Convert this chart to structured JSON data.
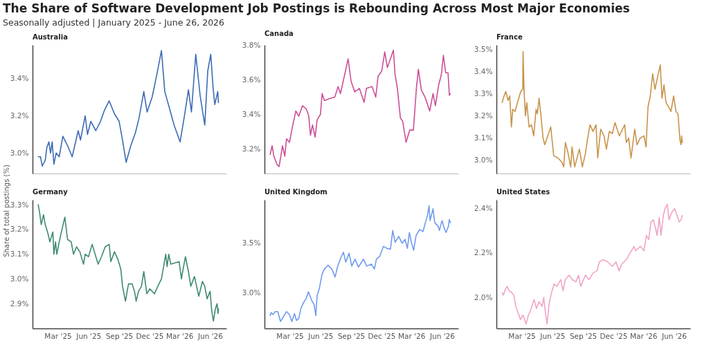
{
  "chart_data": [
    {
      "type": "line",
      "title": "The Share of Software Development Job Postings is Rebounding Across Most Major Economies",
      "subtitle": "Seasonally adjusted | January 2025 - June 26, 2026",
      "tick_labels": "y",
      "xlim": [
        "2024-12-15",
        "2026-07-20"
      ],
      "xticks": [
        {
          "value": "2025-03-01",
          "label": null
        },
        {
          "value": "2025-06-01",
          "label": null
        },
        {
          "value": "2025-09-01",
          "label": null
        },
        {
          "value": "2025-12-01",
          "label": null
        },
        {
          "value": "2026-03-01",
          "label": null
        },
        {
          "value": "2026-06-01",
          "label": null
        }
      ],
      "ylim": [
        2.89,
        3.58
      ],
      "yticks": [
        {
          "value": 3.0,
          "label": "3.0%"
        },
        {
          "value": 3.2,
          "label": "3.2%"
        },
        {
          "value": 3.4,
          "label": "3.4%"
        }
      ],
      "series": [
        {
          "name": "Australia",
          "color": "#3d6bb5",
          "x": [
            "2025-01-01",
            "2025-01-08",
            "2025-01-13",
            "2025-01-22",
            "2025-01-27",
            "2025-02-02",
            "2025-02-07",
            "2025-02-12",
            "2025-02-17",
            "2025-02-24",
            "2025-03-05",
            "2025-03-16",
            "2025-03-30",
            "2025-04-13",
            "2025-05-01",
            "2025-05-08",
            "2025-05-22",
            "2025-05-29",
            "2025-06-08",
            "2025-06-23",
            "2025-07-07",
            "2025-07-19",
            "2025-08-02",
            "2025-08-18",
            "2025-09-01",
            "2025-09-12",
            "2025-09-22",
            "2025-10-06",
            "2025-10-20",
            "2025-10-31",
            "2025-11-14",
            "2025-11-24",
            "2025-12-09",
            "2025-12-23",
            "2026-01-06",
            "2026-01-16",
            "2026-01-27",
            "2026-02-13",
            "2026-03-03",
            "2026-03-17",
            "2026-03-28",
            "2026-04-06",
            "2026-04-19",
            "2026-05-02",
            "2026-05-16",
            "2026-05-25",
            "2026-06-03",
            "2026-06-10",
            "2026-06-15",
            "2026-06-24",
            "2026-06-26"
          ],
          "values": [
            2.98,
            2.98,
            2.93,
            2.96,
            3.03,
            3.06,
            3.0,
            3.06,
            2.94,
            3.0,
            2.98,
            3.09,
            3.04,
            2.98,
            3.12,
            3.07,
            3.2,
            3.1,
            3.17,
            3.12,
            3.17,
            3.23,
            3.28,
            3.21,
            3.17,
            3.06,
            2.95,
            3.04,
            3.11,
            3.19,
            3.33,
            3.22,
            3.3,
            3.42,
            3.55,
            3.33,
            3.26,
            3.15,
            3.06,
            3.21,
            3.34,
            3.22,
            3.53,
            3.31,
            3.15,
            3.44,
            3.53,
            3.35,
            3.26,
            3.33,
            3.27
          ]
        }
      ]
    },
    {
      "type": "line",
      "tick_labels": "y",
      "xlim": [
        "2024-12-15",
        "2026-07-20"
      ],
      "xticks": [
        {
          "value": "2025-03-01",
          "label": null
        },
        {
          "value": "2025-06-01",
          "label": null
        },
        {
          "value": "2025-09-01",
          "label": null
        },
        {
          "value": "2025-12-01",
          "label": null
        },
        {
          "value": "2026-03-01",
          "label": null
        },
        {
          "value": "2026-06-01",
          "label": null
        }
      ],
      "ylim": [
        3.06,
        3.8
      ],
      "yticks": [
        {
          "value": 3.2,
          "label": "3.2%"
        },
        {
          "value": 3.4,
          "label": "3.4%"
        },
        {
          "value": 3.6,
          "label": "3.6%"
        },
        {
          "value": 3.8,
          "label": "3.8%"
        }
      ],
      "series": [
        {
          "name": "Canada",
          "color": "#cc4f96",
          "x": [
            "2025-01-01",
            "2025-01-07",
            "2025-01-12",
            "2025-01-22",
            "2025-01-28",
            "2025-02-07",
            "2025-02-14",
            "2025-02-19",
            "2025-02-28",
            "2025-03-09",
            "2025-03-19",
            "2025-03-28",
            "2025-04-08",
            "2025-04-20",
            "2025-04-27",
            "2025-05-02",
            "2025-05-08",
            "2025-05-16",
            "2025-05-22",
            "2025-06-01",
            "2025-06-06",
            "2025-06-13",
            "2025-06-26",
            "2025-07-14",
            "2025-07-24",
            "2025-07-31",
            "2025-08-14",
            "2025-08-23",
            "2025-09-01",
            "2025-09-12",
            "2025-09-26",
            "2025-10-10",
            "2025-10-17",
            "2025-11-03",
            "2025-11-14",
            "2025-11-21",
            "2025-12-02",
            "2025-12-11",
            "2025-12-19",
            "2026-01-06",
            "2026-01-11",
            "2026-01-18",
            "2026-01-27",
            "2026-02-03",
            "2026-02-13",
            "2026-02-24",
            "2026-03-07",
            "2026-03-16",
            "2026-03-22",
            "2026-03-31",
            "2026-04-11",
            "2026-04-25",
            "2026-05-05",
            "2026-05-12",
            "2026-05-22",
            "2026-05-30",
            "2026-06-05",
            "2026-06-12",
            "2026-06-19",
            "2026-06-23",
            "2026-06-26"
          ],
          "values": [
            3.17,
            3.22,
            3.16,
            3.11,
            3.1,
            3.22,
            3.16,
            3.26,
            3.24,
            3.33,
            3.42,
            3.39,
            3.45,
            3.43,
            3.39,
            3.28,
            3.34,
            3.27,
            3.37,
            3.4,
            3.52,
            3.48,
            3.49,
            3.5,
            3.56,
            3.52,
            3.64,
            3.72,
            3.59,
            3.53,
            3.55,
            3.47,
            3.55,
            3.56,
            3.5,
            3.62,
            3.65,
            3.76,
            3.67,
            3.77,
            3.63,
            3.55,
            3.38,
            3.36,
            3.24,
            3.31,
            3.31,
            3.55,
            3.66,
            3.54,
            3.5,
            3.42,
            3.52,
            3.45,
            3.57,
            3.63,
            3.74,
            3.64,
            3.64,
            3.51,
            3.52
          ]
        }
      ]
    },
    {
      "type": "line",
      "tick_labels": "y",
      "xlim": [
        "2024-12-15",
        "2026-07-20"
      ],
      "xticks": [
        {
          "value": "2025-03-01",
          "label": null
        },
        {
          "value": "2025-06-01",
          "label": null
        },
        {
          "value": "2025-09-01",
          "label": null
        },
        {
          "value": "2025-12-01",
          "label": null
        },
        {
          "value": "2026-03-01",
          "label": null
        },
        {
          "value": "2026-06-01",
          "label": null
        }
      ],
      "ylim": [
        2.94,
        3.52
      ],
      "yticks": [
        {
          "value": 3.0,
          "label": "3.0%"
        },
        {
          "value": 3.1,
          "label": "3.1%"
        },
        {
          "value": 3.2,
          "label": "3.2%"
        },
        {
          "value": 3.3,
          "label": "3.3%"
        },
        {
          "value": 3.4,
          "label": "3.4%"
        },
        {
          "value": 3.5,
          "label": "3.5%"
        }
      ],
      "series": [
        {
          "name": "France",
          "color": "#c8934a",
          "x": [
            "2025-01-01",
            "2025-01-07",
            "2025-01-12",
            "2025-01-19",
            "2025-01-24",
            "2025-01-29",
            "2025-02-02",
            "2025-02-09",
            "2025-02-18",
            "2025-02-26",
            "2025-03-04",
            "2025-03-05",
            "2025-03-08",
            "2025-03-12",
            "2025-03-16",
            "2025-03-23",
            "2025-03-30",
            "2025-04-06",
            "2025-04-13",
            "2025-04-17",
            "2025-04-22",
            "2025-04-27",
            "2025-05-04",
            "2025-05-09",
            "2025-05-18",
            "2025-05-27",
            "2025-06-05",
            "2025-06-18",
            "2025-06-30",
            "2025-07-05",
            "2025-07-10",
            "2025-07-17",
            "2025-07-26",
            "2025-07-30",
            "2025-08-07",
            "2025-08-21",
            "2025-08-30",
            "2025-09-08",
            "2025-09-15",
            "2025-09-22",
            "2025-10-01",
            "2025-10-10",
            "2025-10-15",
            "2025-10-24",
            "2025-11-03",
            "2025-11-10",
            "2025-11-19",
            "2025-11-28",
            "2025-12-06",
            "2025-12-19",
            "2026-01-04",
            "2026-01-09",
            "2026-01-16",
            "2026-01-23",
            "2026-02-03",
            "2026-02-10",
            "2026-02-20",
            "2026-03-03",
            "2026-03-09",
            "2026-03-15",
            "2026-03-22",
            "2026-03-29",
            "2026-04-05",
            "2026-04-12",
            "2026-04-21",
            "2026-04-26",
            "2026-05-02",
            "2026-05-08",
            "2026-05-16",
            "2026-05-23",
            "2026-05-31",
            "2026-06-07",
            "2026-06-13",
            "2026-06-19",
            "2026-06-22",
            "2026-06-24",
            "2026-06-26"
          ],
          "values": [
            3.26,
            3.29,
            3.31,
            3.27,
            3.29,
            3.15,
            3.23,
            3.22,
            3.27,
            3.31,
            3.32,
            3.49,
            3.31,
            3.2,
            3.26,
            3.15,
            3.16,
            3.11,
            3.23,
            3.21,
            3.28,
            3.21,
            3.1,
            3.07,
            3.11,
            3.15,
            3.02,
            3.01,
            2.99,
            2.97,
            3.08,
            3.04,
            2.97,
            3.06,
            2.97,
            3.05,
            2.97,
            3.03,
            3.1,
            3.16,
            3.13,
            3.16,
            3.01,
            3.14,
            3.11,
            3.05,
            3.13,
            3.12,
            3.17,
            3.11,
            3.16,
            3.08,
            3.1,
            3.01,
            3.14,
            3.07,
            3.1,
            3.11,
            3.06,
            3.24,
            3.29,
            3.39,
            3.32,
            3.37,
            3.43,
            3.28,
            3.34,
            3.26,
            3.24,
            3.22,
            3.29,
            3.22,
            3.21,
            3.09,
            3.07,
            3.11,
            3.08
          ]
        }
      ]
    },
    {
      "type": "line",
      "ylabel": "Share of total postings (%)",
      "xlim": [
        "2024-12-15",
        "2026-07-20"
      ],
      "xticks": [
        {
          "value": "2025-03-01",
          "label": "Mar '25"
        },
        {
          "value": "2025-06-01",
          "label": "Jun '25"
        },
        {
          "value": "2025-09-01",
          "label": "Sep '25"
        },
        {
          "value": "2025-12-01",
          "label": "Dec '25"
        },
        {
          "value": "2026-03-01",
          "label": "Mar '26"
        },
        {
          "value": "2026-06-01",
          "label": "Jun '26"
        }
      ],
      "ylim": [
        2.8,
        3.32
      ],
      "yticks": [
        {
          "value": 2.9,
          "label": "2.9%"
        },
        {
          "value": 3.0,
          "label": "3.0%"
        },
        {
          "value": 3.1,
          "label": "3.1%"
        },
        {
          "value": 3.2,
          "label": "3.2%"
        },
        {
          "value": 3.3,
          "label": "3.3%"
        }
      ],
      "series": [
        {
          "name": "Germany",
          "color": "#3e8a72",
          "x": [
            "2025-01-01",
            "2025-01-05",
            "2025-01-10",
            "2025-01-17",
            "2025-01-22",
            "2025-01-31",
            "2025-02-05",
            "2025-02-14",
            "2025-02-17",
            "2025-02-22",
            "2025-02-26",
            "2025-03-05",
            "2025-03-15",
            "2025-03-22",
            "2025-03-30",
            "2025-04-10",
            "2025-04-17",
            "2025-04-26",
            "2025-05-06",
            "2025-05-17",
            "2025-05-22",
            "2025-06-01",
            "2025-06-12",
            "2025-06-23",
            "2025-06-30",
            "2025-07-10",
            "2025-07-21",
            "2025-08-02",
            "2025-08-07",
            "2025-08-18",
            "2025-08-28",
            "2025-09-06",
            "2025-09-11",
            "2025-09-20",
            "2025-09-29",
            "2025-10-10",
            "2025-10-17",
            "2025-10-22",
            "2025-10-29",
            "2025-11-07",
            "2025-11-14",
            "2025-11-23",
            "2025-12-02",
            "2025-12-16",
            "2025-12-26",
            "2026-01-06",
            "2026-01-19",
            "2026-01-23",
            "2026-01-28",
            "2026-02-03",
            "2026-02-28",
            "2026-03-07",
            "2026-03-12",
            "2026-03-19",
            "2026-03-28",
            "2026-04-04",
            "2026-04-15",
            "2026-04-28",
            "2026-05-09",
            "2026-05-16",
            "2026-05-23",
            "2026-06-01",
            "2026-06-06",
            "2026-06-11",
            "2026-06-17",
            "2026-06-22",
            "2026-06-25",
            "2026-06-26"
          ],
          "values": [
            3.3,
            3.27,
            3.22,
            3.26,
            3.22,
            3.18,
            3.15,
            3.19,
            3.1,
            3.15,
            3.1,
            3.15,
            3.21,
            3.25,
            3.16,
            3.15,
            3.1,
            3.13,
            3.11,
            3.06,
            3.1,
            3.09,
            3.14,
            3.09,
            3.06,
            3.09,
            3.13,
            3.14,
            3.07,
            3.11,
            3.08,
            3.04,
            2.97,
            2.91,
            2.98,
            2.98,
            2.95,
            2.91,
            2.95,
            2.97,
            3.03,
            2.94,
            2.96,
            2.94,
            2.97,
            3.0,
            3.1,
            3.05,
            3.1,
            3.06,
            3.07,
            3.0,
            3.04,
            3.09,
            3.03,
            2.97,
            3.01,
            2.93,
            2.99,
            2.97,
            2.92,
            2.95,
            2.87,
            2.83,
            2.88,
            2.9,
            2.86,
            2.88
          ]
        }
      ]
    },
    {
      "type": "line",
      "xlim": [
        "2024-12-15",
        "2026-07-20"
      ],
      "xticks": [
        {
          "value": "2025-03-01",
          "label": "Mar '25"
        },
        {
          "value": "2025-06-01",
          "label": "Jun '25"
        },
        {
          "value": "2025-09-01",
          "label": "Sep '25"
        },
        {
          "value": "2025-12-01",
          "label": "Dec '25"
        },
        {
          "value": "2026-03-01",
          "label": "Mar '26"
        },
        {
          "value": "2026-06-01",
          "label": "Jun '26"
        }
      ],
      "ylim": [
        2.64,
        3.94
      ],
      "yticks": [
        {
          "value": 3.0,
          "label": "3.0%"
        },
        {
          "value": 3.5,
          "label": "3.5%"
        }
      ],
      "series": [
        {
          "name": "United Kingdom",
          "color": "#6f9bee",
          "x": [
            "2025-01-01",
            "2025-01-04",
            "2025-01-09",
            "2025-01-16",
            "2025-01-24",
            "2025-02-01",
            "2025-02-10",
            "2025-02-19",
            "2025-02-28",
            "2025-03-07",
            "2025-03-15",
            "2025-03-21",
            "2025-03-28",
            "2025-04-03",
            "2025-04-11",
            "2025-04-19",
            "2025-04-26",
            "2025-05-06",
            "2025-05-13",
            "2025-05-18",
            "2025-05-22",
            "2025-05-29",
            "2025-06-06",
            "2025-06-13",
            "2025-06-24",
            "2025-07-05",
            "2025-07-15",
            "2025-07-22",
            "2025-08-02",
            "2025-08-09",
            "2025-08-16",
            "2025-08-26",
            "2025-09-03",
            "2025-09-13",
            "2025-09-23",
            "2025-10-08",
            "2025-10-18",
            "2025-11-01",
            "2025-11-10",
            "2025-11-16",
            "2025-11-26",
            "2025-12-07",
            "2025-12-17",
            "2025-12-28",
            "2026-01-04",
            "2026-01-11",
            "2026-01-22",
            "2026-02-01",
            "2026-02-10",
            "2026-02-17",
            "2026-02-23",
            "2026-03-01",
            "2026-03-08",
            "2026-03-15",
            "2026-03-26",
            "2026-04-05",
            "2026-04-12",
            "2026-04-18",
            "2026-04-23",
            "2026-04-26",
            "2026-05-05",
            "2026-05-10",
            "2026-05-21",
            "2026-05-24",
            "2026-06-01",
            "2026-06-09",
            "2026-06-13",
            "2026-06-20",
            "2026-06-23",
            "2026-06-26"
          ],
          "values": [
            2.77,
            2.8,
            2.78,
            2.81,
            2.81,
            2.71,
            2.76,
            2.81,
            2.78,
            2.71,
            2.79,
            2.72,
            2.74,
            2.84,
            2.9,
            2.94,
            3.01,
            2.92,
            2.88,
            2.77,
            2.97,
            3.05,
            3.19,
            3.24,
            3.28,
            3.24,
            3.16,
            3.26,
            3.36,
            3.41,
            3.31,
            3.4,
            3.27,
            3.34,
            3.26,
            3.34,
            3.27,
            3.29,
            3.24,
            3.34,
            3.37,
            3.47,
            3.45,
            3.44,
            3.63,
            3.51,
            3.57,
            3.5,
            3.54,
            3.45,
            3.61,
            3.51,
            3.43,
            3.58,
            3.64,
            3.62,
            3.71,
            3.78,
            3.88,
            3.73,
            3.85,
            3.71,
            3.67,
            3.63,
            3.73,
            3.64,
            3.61,
            3.67,
            3.74,
            3.71
          ]
        }
      ]
    },
    {
      "type": "line",
      "xlim": [
        "2024-12-15",
        "2026-07-20"
      ],
      "xticks": [
        {
          "value": "2025-03-01",
          "label": "Mar '25"
        },
        {
          "value": "2025-06-01",
          "label": "Jun '25"
        },
        {
          "value": "2025-09-01",
          "label": "Sep '25"
        },
        {
          "value": "2025-12-01",
          "label": "Dec '25"
        },
        {
          "value": "2026-03-01",
          "label": "Mar '26"
        },
        {
          "value": "2026-06-01",
          "label": "Jun '26"
        }
      ],
      "ylim": [
        1.86,
        2.44
      ],
      "yticks": [
        {
          "value": 2.0,
          "label": "2.0%"
        },
        {
          "value": 2.2,
          "label": "2.2%"
        },
        {
          "value": 2.4,
          "label": "2.4%"
        }
      ],
      "series": [
        {
          "name": "United States",
          "color": "#f0a4c8",
          "x": [
            "2025-01-01",
            "2025-01-05",
            "2025-01-09",
            "2025-01-16",
            "2025-01-22",
            "2025-01-31",
            "2025-02-05",
            "2025-02-11",
            "2025-02-18",
            "2025-02-25",
            "2025-03-05",
            "2025-03-14",
            "2025-03-21",
            "2025-03-27",
            "2025-04-07",
            "2025-04-14",
            "2025-04-22",
            "2025-05-01",
            "2025-05-06",
            "2025-05-11",
            "2025-05-16",
            "2025-05-22",
            "2025-05-29",
            "2025-06-06",
            "2025-06-15",
            "2025-06-26",
            "2025-07-03",
            "2025-07-10",
            "2025-07-21",
            "2025-07-31",
            "2025-08-11",
            "2025-08-18",
            "2025-08-25",
            "2025-09-08",
            "2025-09-19",
            "2025-10-01",
            "2025-10-13",
            "2025-10-20",
            "2025-10-31",
            "2025-11-14",
            "2025-11-28",
            "2025-12-09",
            "2025-12-18",
            "2025-12-26",
            "2026-01-09",
            "2026-01-20",
            "2026-02-01",
            "2026-02-06",
            "2026-02-20",
            "2026-03-03",
            "2026-03-10",
            "2026-03-17",
            "2026-03-24",
            "2026-03-31",
            "2026-04-07",
            "2026-04-11",
            "2026-04-18",
            "2026-04-23",
            "2026-04-30",
            "2026-05-05",
            "2026-05-12",
            "2026-05-17",
            "2026-05-24",
            "2026-06-03",
            "2026-06-10",
            "2026-06-17",
            "2026-06-22",
            "2026-06-26"
          ],
          "values": [
            2.02,
            2.01,
            2.03,
            2.05,
            2.03,
            2.02,
            2.01,
            1.96,
            1.93,
            1.9,
            1.92,
            1.88,
            1.92,
            1.94,
            1.99,
            1.95,
            1.98,
            1.96,
            2.0,
            1.93,
            1.88,
            1.97,
            2.02,
            2.06,
            2.05,
            2.08,
            2.03,
            2.08,
            2.1,
            2.08,
            2.07,
            2.1,
            2.05,
            2.1,
            2.08,
            2.11,
            2.12,
            2.16,
            2.17,
            2.16,
            2.14,
            2.16,
            2.12,
            2.15,
            2.17,
            2.2,
            2.23,
            2.21,
            2.23,
            2.21,
            2.28,
            2.26,
            2.34,
            2.35,
            2.31,
            2.28,
            2.36,
            2.28,
            2.37,
            2.4,
            2.42,
            2.35,
            2.38,
            2.4,
            2.37,
            2.34,
            2.35,
            2.37
          ]
        }
      ]
    }
  ]
}
